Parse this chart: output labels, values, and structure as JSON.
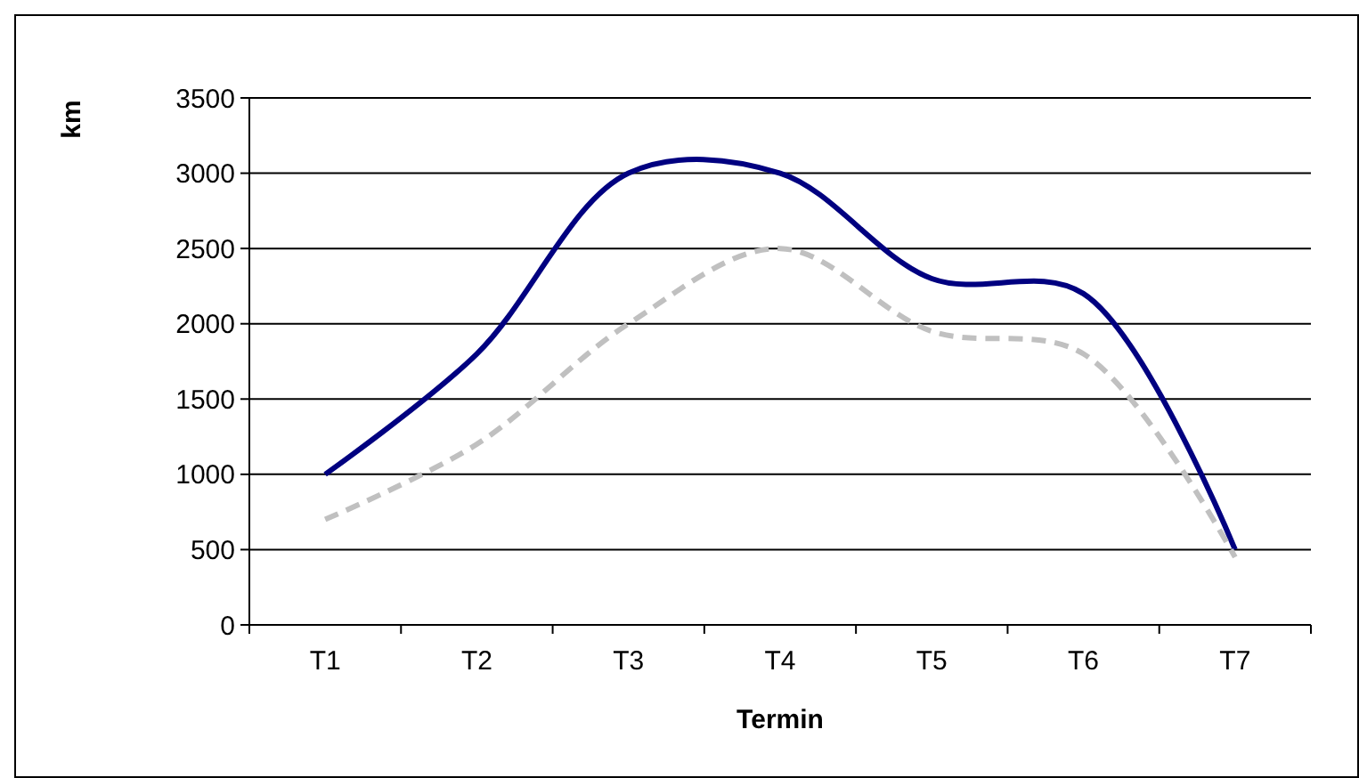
{
  "chart_data": {
    "type": "line",
    "xlabel": "Termin",
    "ylabel": "km",
    "categories": [
      "T1",
      "T2",
      "T3",
      "T4",
      "T5",
      "T6",
      "T7"
    ],
    "series": [
      {
        "color": "#000080",
        "line_style": "solid",
        "values": [
          1000,
          1800,
          3000,
          3000,
          2300,
          2200,
          500
        ]
      },
      {
        "color": "#c0c0c0",
        "line_style": "dashed",
        "values": [
          700,
          1200,
          2000,
          2500,
          1950,
          1800,
          450
        ]
      }
    ],
    "ylim": [
      0,
      3500
    ],
    "yticks": [
      0,
      500,
      1000,
      1500,
      2000,
      2500,
      3000,
      3500
    ],
    "grid": "y"
  }
}
